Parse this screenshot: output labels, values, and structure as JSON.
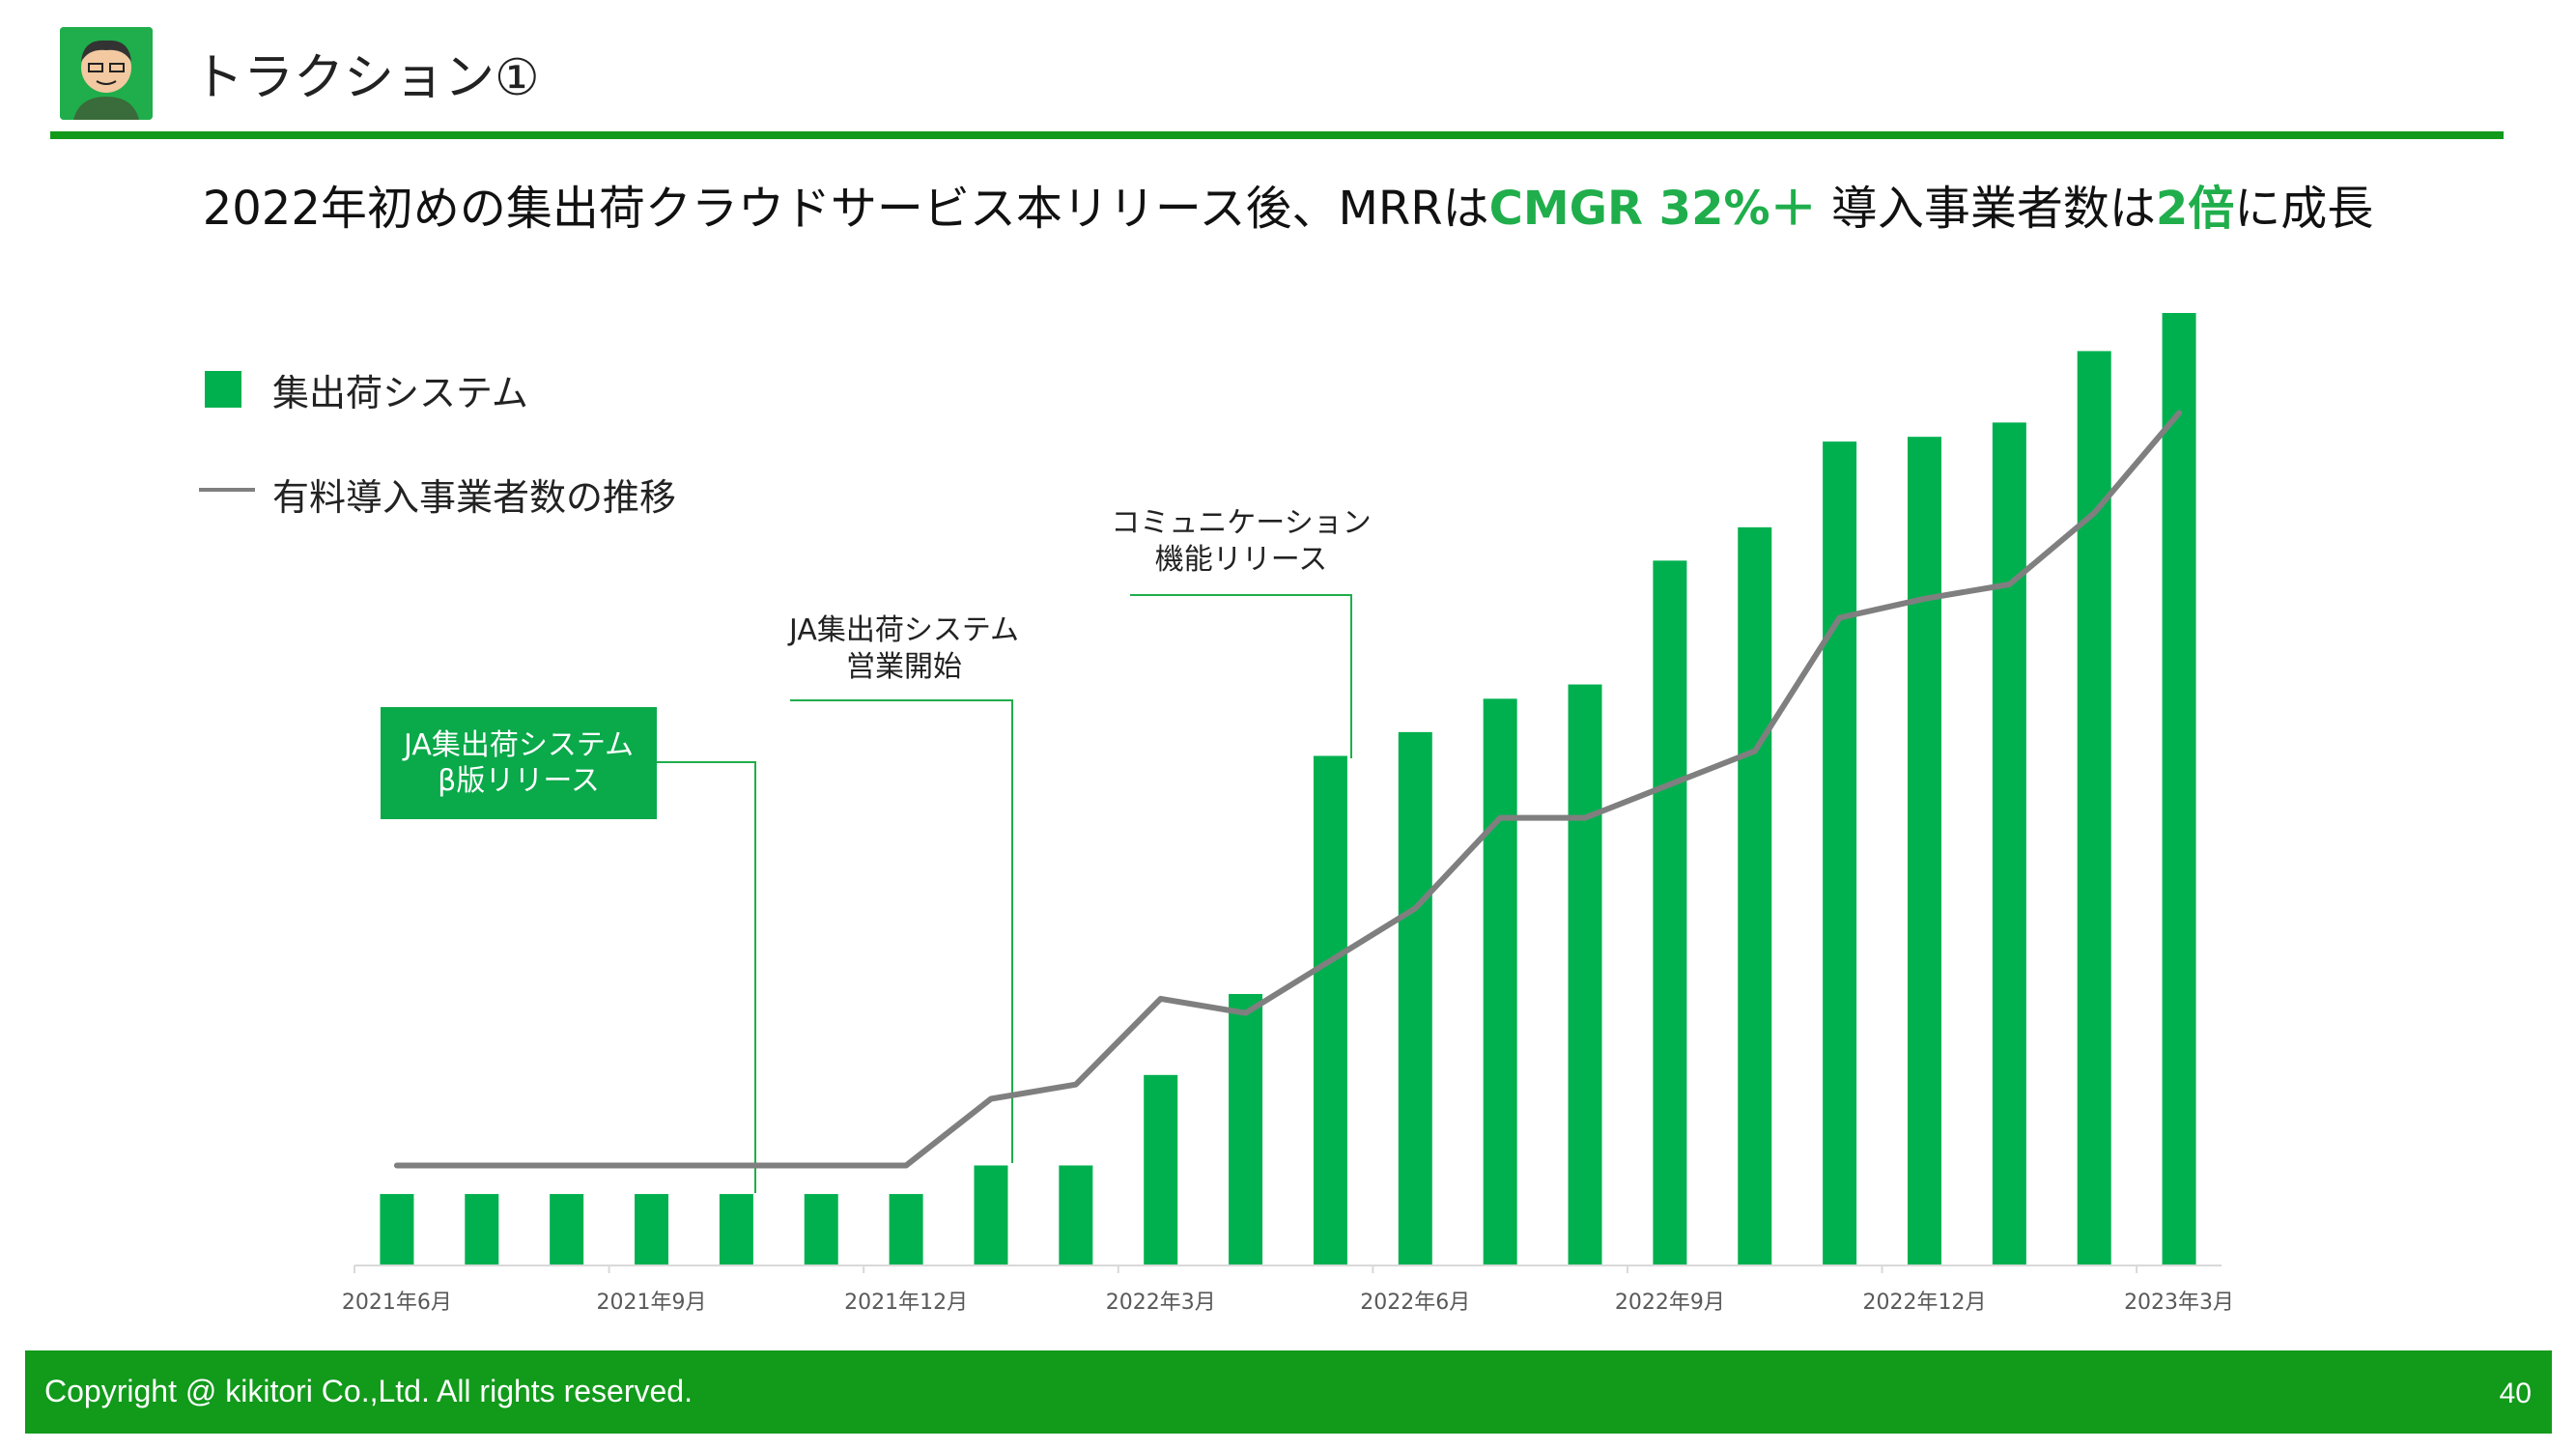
{
  "header": {
    "title": "トラクション①"
  },
  "headline": {
    "part1": "2022年初めの集出荷クラウドサービス本リリース後、MRRは",
    "hl1": "CMGR 32%＋",
    "part2": " 導入事業者数は",
    "hl2": "2倍",
    "part3": "に成長"
  },
  "legend": {
    "bars": "集出荷システム",
    "line": "有料導入事業者数の推移"
  },
  "annotations": {
    "beta": [
      "JA集出荷システム",
      "β版リリース"
    ],
    "sales": [
      "JA集出荷システム",
      "営業開始"
    ],
    "comm": [
      "コミュニケーション",
      "機能リリース"
    ]
  },
  "footer": {
    "copyright": "Copyright @ kikitori Co.,Ltd. All rights reserved.",
    "page": "40"
  },
  "colors": {
    "bar": "#00b04f",
    "line": "#7f7f7f",
    "accent": "#129a1b"
  },
  "chart_data": {
    "type": "bar",
    "series": [
      {
        "name": "集出荷システム",
        "type": "bar",
        "values": [
          7.5,
          7.5,
          7.5,
          7.5,
          7.5,
          7.5,
          7.5,
          10.5,
          10.5,
          20,
          28.5,
          53.5,
          56,
          59.5,
          61,
          74,
          77.5,
          86.5,
          87,
          88.5,
          96,
          100
        ]
      },
      {
        "name": "有料導入事業者数の推移",
        "type": "line",
        "values": [
          10.5,
          10.5,
          10.5,
          10.5,
          10.5,
          10.5,
          10.5,
          17.5,
          19,
          28,
          26.5,
          32,
          37.5,
          47,
          47,
          50.5,
          54,
          68,
          70,
          71.5,
          79,
          89.5
        ]
      }
    ],
    "x_tick_labels": [
      "2021年6月",
      "2021年9月",
      "2021年12月",
      "2022年3月",
      "2022年6月",
      "2022年9月",
      "2022年12月",
      "2023年3月"
    ],
    "x_tick_positions": [
      0,
      3,
      6,
      9,
      12,
      15,
      18,
      21
    ],
    "ylim": [
      0,
      100
    ],
    "grid": false,
    "legend_position": "top-left"
  }
}
